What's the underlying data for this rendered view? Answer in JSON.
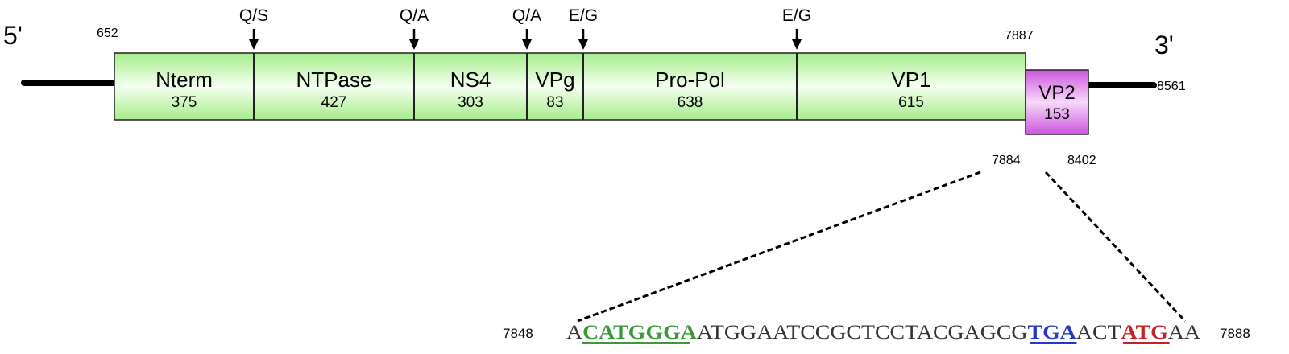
{
  "genome": {
    "five_prime": "5'",
    "three_prime": "3'",
    "orf1_start": "652",
    "orf1_end": "7887",
    "orf2_start": "7884",
    "orf2_end": "8402",
    "genome_end": "8561"
  },
  "segments": [
    {
      "name": "Nterm",
      "length": "375"
    },
    {
      "name": "NTPase",
      "length": "427"
    },
    {
      "name": "NS4",
      "length": "303"
    },
    {
      "name": "VPg",
      "length": "83"
    },
    {
      "name": "Pro-Pol",
      "length": "638"
    },
    {
      "name": "VP1",
      "length": "615"
    }
  ],
  "vp2": {
    "name": "VP2",
    "length": "153"
  },
  "cleavage_sites": [
    "Q/S",
    "Q/A",
    "Q/A",
    "E/G",
    "E/G"
  ],
  "sequence": {
    "start": "7848",
    "end": "7888",
    "parts": [
      {
        "text": "A",
        "style": "plain"
      },
      {
        "text": "CATGGGA",
        "style": "green"
      },
      {
        "text": "ATGGAATCCGCTCCTACGAGCG",
        "style": "plain"
      },
      {
        "text": "TGA",
        "style": "blue"
      },
      {
        "text": "ACT",
        "style": "plain"
      },
      {
        "text": "ATG",
        "style": "red"
      },
      {
        "text": "AA",
        "style": "plain"
      }
    ]
  },
  "colors": {
    "green_box": "#b8f2a0",
    "vp2_box": "#d96fe6",
    "green_text": "#3a9a3a",
    "blue_text": "#2438c9",
    "red_text": "#c42323"
  }
}
